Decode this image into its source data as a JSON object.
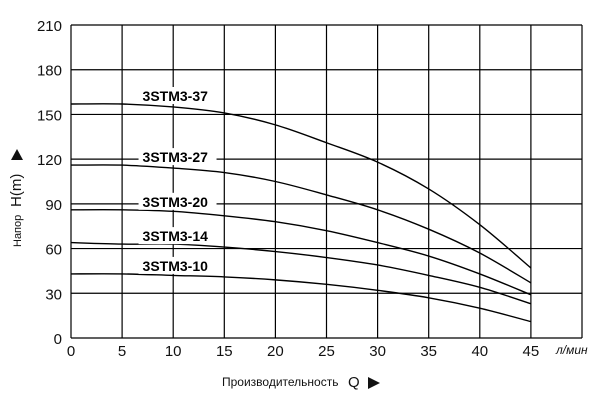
{
  "chart_data": {
    "type": "line",
    "xlabel": "Производительность",
    "xlabel_symbol": "Q",
    "x_unit": "л/мин",
    "ylabel": "Напор",
    "ylabel_symbol": "H(m)",
    "xlim": [
      0,
      50
    ],
    "ylim": [
      0,
      210
    ],
    "x_ticks": [
      0,
      5,
      10,
      15,
      20,
      25,
      30,
      35,
      40,
      45
    ],
    "y_ticks": [
      0,
      30,
      60,
      90,
      120,
      150,
      180,
      210
    ],
    "grid": true,
    "series": [
      {
        "name": "3STM3-37",
        "x": [
          0,
          5,
          10,
          15,
          20,
          25,
          30,
          35,
          40,
          45
        ],
        "y": [
          157,
          157,
          155,
          151,
          143,
          131,
          118,
          100,
          76,
          47
        ]
      },
      {
        "name": "3STM3-27",
        "x": [
          0,
          5,
          10,
          15,
          20,
          25,
          30,
          35,
          40,
          45
        ],
        "y": [
          116,
          116,
          114,
          111,
          105,
          96,
          86,
          73,
          57,
          37
        ]
      },
      {
        "name": "3STM3-20",
        "x": [
          0,
          5,
          10,
          15,
          20,
          25,
          30,
          35,
          40,
          45
        ],
        "y": [
          86,
          86,
          85,
          82,
          78,
          72,
          64,
          55,
          43,
          29
        ]
      },
      {
        "name": "3STM3-14",
        "x": [
          0,
          5,
          10,
          15,
          20,
          25,
          30,
          35,
          40,
          45
        ],
        "y": [
          64,
          63,
          63,
          61,
          58,
          54,
          49,
          42,
          34,
          23
        ]
      },
      {
        "name": "3STM3-10",
        "x": [
          0,
          5,
          10,
          15,
          20,
          25,
          30,
          35,
          40,
          45
        ],
        "y": [
          43,
          43,
          42,
          41,
          39,
          36,
          32,
          27,
          20,
          11
        ]
      }
    ]
  }
}
